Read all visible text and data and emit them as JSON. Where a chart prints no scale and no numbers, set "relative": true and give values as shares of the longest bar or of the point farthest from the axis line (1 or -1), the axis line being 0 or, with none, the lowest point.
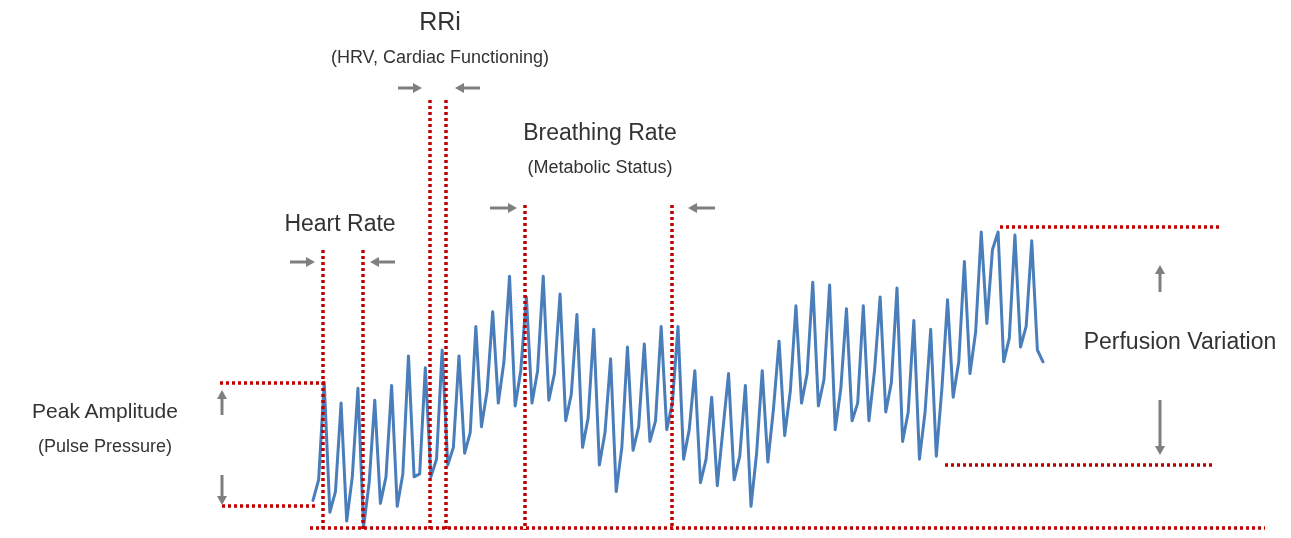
{
  "chart_data": {
    "type": "line",
    "relative": true,
    "line_style": "solid",
    "color": "#4a7ebb",
    "categories": [
      null,
      null,
      null,
      null,
      null,
      null,
      null,
      null,
      null,
      null,
      null,
      null,
      null,
      null,
      null,
      null,
      null,
      null,
      null,
      null,
      null,
      null,
      null,
      null,
      null,
      null,
      null,
      null,
      null,
      null,
      null,
      null,
      null,
      null,
      null,
      null,
      null,
      null,
      null,
      null,
      null,
      null,
      null,
      null,
      null,
      null,
      null,
      null,
      null,
      null,
      null,
      null,
      null,
      null,
      null,
      null,
      null,
      null,
      null,
      null,
      null,
      null,
      null,
      null,
      null,
      null,
      null,
      null,
      null,
      null,
      null,
      null,
      null,
      null,
      null,
      null,
      null,
      null,
      null,
      null,
      null,
      null,
      null,
      null,
      null,
      null,
      null,
      null,
      null,
      null,
      null,
      null,
      null,
      null,
      null,
      null,
      null,
      null,
      null,
      null,
      null,
      null,
      null,
      null,
      null,
      null,
      null,
      null,
      null,
      null,
      null,
      null,
      null,
      null,
      null,
      null,
      null,
      null,
      null,
      null,
      null,
      null,
      null,
      null,
      null,
      null,
      null,
      null,
      null,
      null,
      null
    ],
    "values": [
      0.09,
      0.16,
      0.49,
      0.05,
      0.12,
      0.42,
      0.02,
      0.17,
      0.47,
      0,
      0.15,
      0.43,
      0.08,
      0.17,
      0.48,
      0.07,
      0.18,
      0.58,
      0.17,
      0.18,
      0.54,
      0.17,
      0.23,
      0.6,
      0.21,
      0.27,
      0.58,
      0.25,
      0.32,
      0.68,
      0.34,
      0.46,
      0.73,
      0.42,
      0.56,
      0.85,
      0.41,
      0.53,
      0.78,
      0.42,
      0.53,
      0.85,
      0.43,
      0.52,
      0.79,
      0.36,
      0.45,
      0.72,
      0.27,
      0.37,
      0.67,
      0.21,
      0.32,
      0.57,
      0.12,
      0.27,
      0.61,
      0.26,
      0.34,
      0.62,
      0.29,
      0.36,
      0.68,
      0.33,
      0.42,
      0.68,
      0.23,
      0.33,
      0.53,
      0.15,
      0.23,
      0.44,
      0.14,
      0.33,
      0.52,
      0.16,
      0.24,
      0.48,
      0.07,
      0.25,
      0.53,
      0.22,
      0.4,
      0.63,
      0.31,
      0.46,
      0.75,
      0.42,
      0.52,
      0.83,
      0.41,
      0.5,
      0.82,
      0.33,
      0.47,
      0.74,
      0.36,
      0.42,
      0.75,
      0.36,
      0.53,
      0.78,
      0.39,
      0.49,
      0.81,
      0.29,
      0.39,
      0.7,
      0.23,
      0.39,
      0.67,
      0.24,
      0.47,
      0.77,
      0.44,
      0.56,
      0.9,
      0.52,
      0.66,
      1.0,
      0.69,
      0.94,
      1.0,
      0.56,
      0.64,
      0.99,
      0.61,
      0.68,
      0.97,
      0.6,
      0.56
    ],
    "annotations": [
      "RRi",
      "(HRV, Cardiac Functioning)",
      "Breathing Rate",
      "(Metabolic Status)",
      "Heart Rate",
      "Peak Amplitude",
      "(Pulse Pressure)",
      "Perfusion Variation"
    ]
  }
}
